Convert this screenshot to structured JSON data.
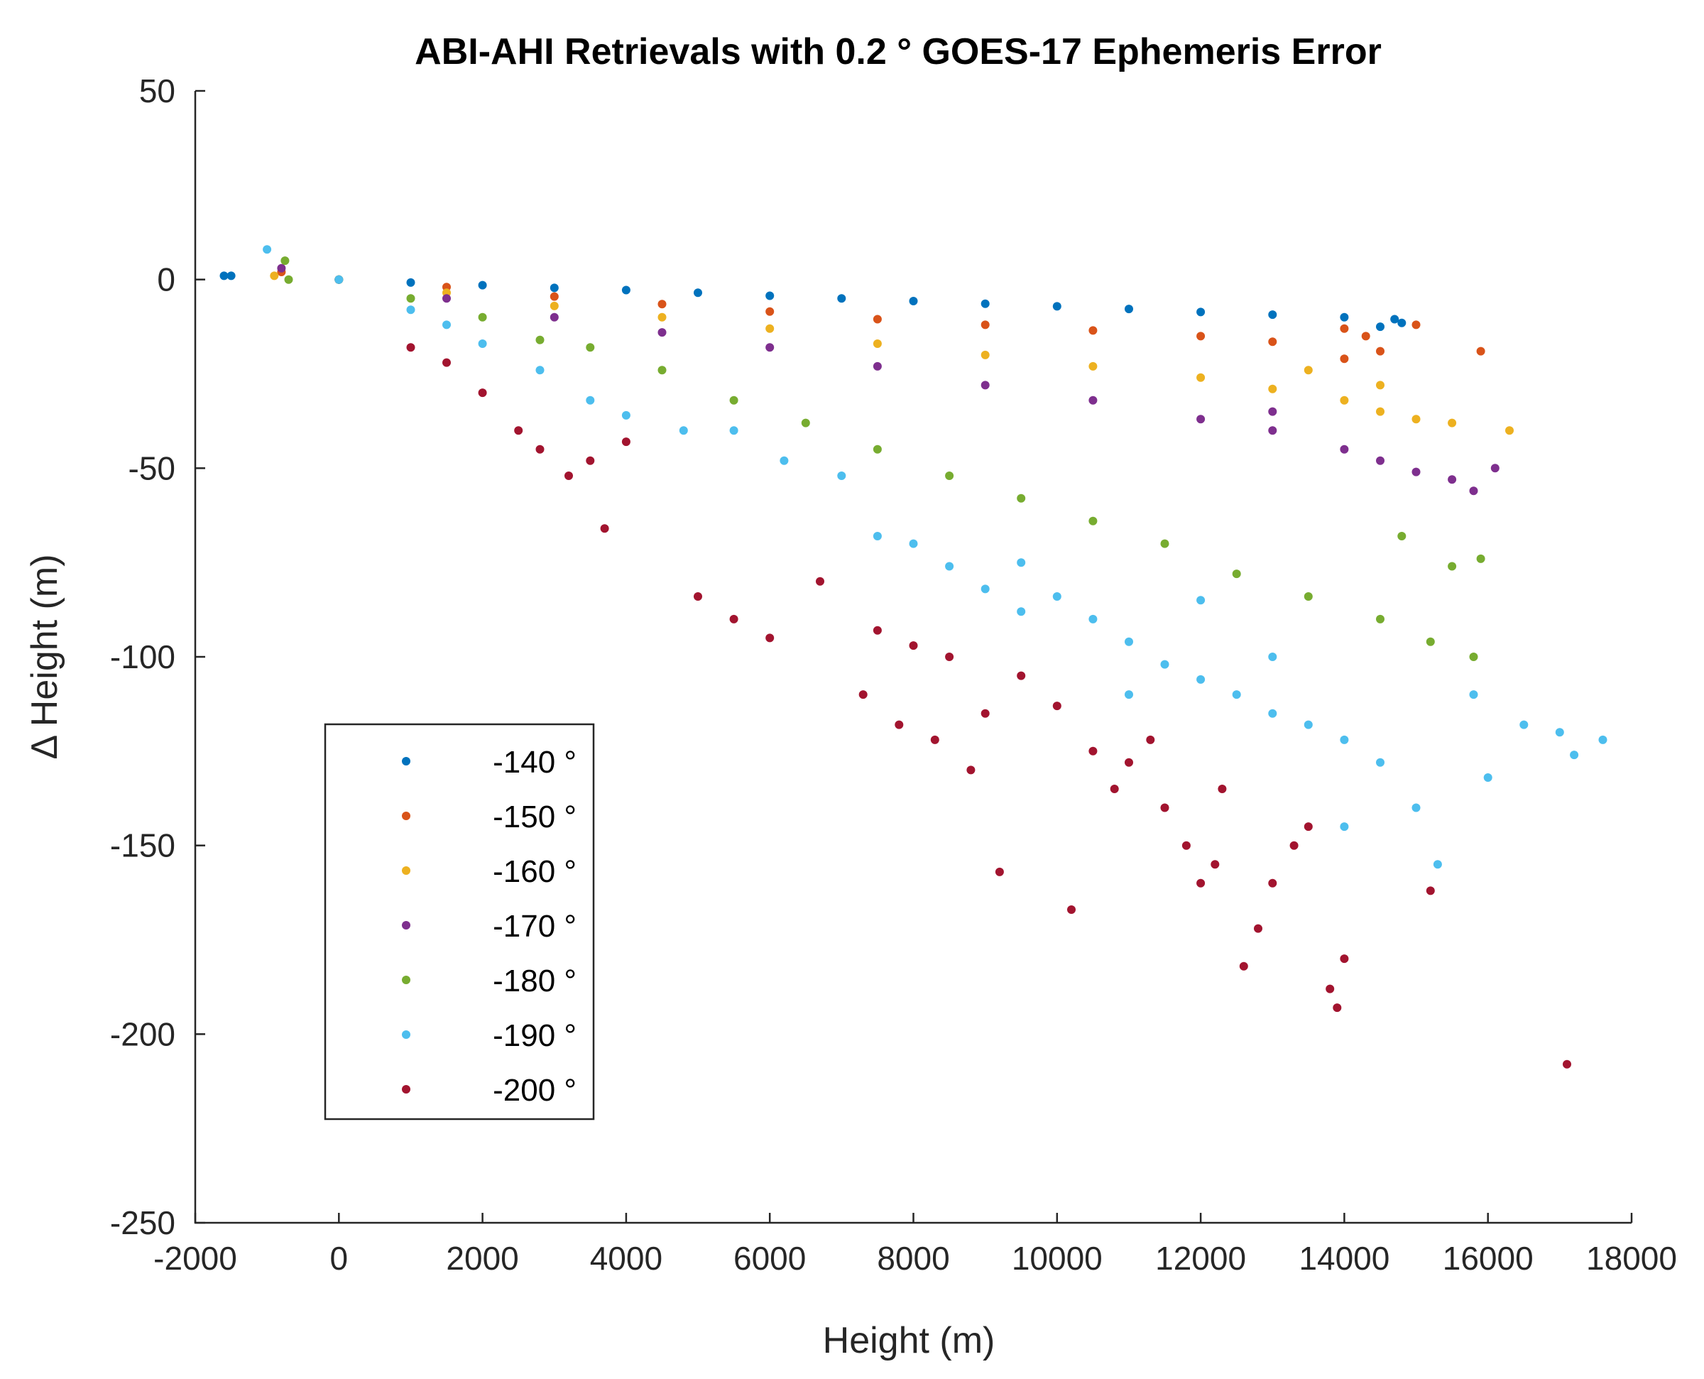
{
  "chart_data": {
    "type": "scatter",
    "title": "ABI-AHI Retrievals with 0.2 ° GOES-17 Ephemeris Error",
    "xlabel": "Height (m)",
    "ylabel": "Δ Height (m)",
    "xlim": [
      -2000,
      18000
    ],
    "ylim": [
      -250,
      50
    ],
    "xticks": [
      -2000,
      0,
      2000,
      4000,
      6000,
      8000,
      10000,
      12000,
      14000,
      16000,
      18000
    ],
    "yticks": [
      50,
      0,
      -50,
      -100,
      -150,
      -200,
      -250
    ],
    "legend_position": "lower-left",
    "series": [
      {
        "name": "-140 °",
        "color": "#0072BD",
        "points": [
          [
            -1600,
            1
          ],
          [
            -1500,
            1
          ],
          [
            0,
            0
          ],
          [
            1000,
            -0.8
          ],
          [
            2000,
            -1.5
          ],
          [
            3000,
            -2.2
          ],
          [
            4000,
            -2.8
          ],
          [
            5000,
            -3.5
          ],
          [
            6000,
            -4.3
          ],
          [
            7000,
            -5.0
          ],
          [
            8000,
            -5.7
          ],
          [
            9000,
            -6.4
          ],
          [
            10000,
            -7.1
          ],
          [
            11000,
            -7.8
          ],
          [
            12000,
            -8.6
          ],
          [
            13000,
            -9.3
          ],
          [
            14000,
            -10.0
          ],
          [
            14700,
            -10.5
          ],
          [
            14800,
            -11.5
          ],
          [
            14500,
            -12.5
          ]
        ]
      },
      {
        "name": "-150 °",
        "color": "#D95319",
        "points": [
          [
            -800,
            2
          ],
          [
            0,
            0
          ],
          [
            1500,
            -2
          ],
          [
            3000,
            -4.5
          ],
          [
            4500,
            -6.5
          ],
          [
            6000,
            -8.5
          ],
          [
            7500,
            -10.5
          ],
          [
            9000,
            -12
          ],
          [
            10500,
            -13.5
          ],
          [
            12000,
            -15
          ],
          [
            13000,
            -16.5
          ],
          [
            14000,
            -13
          ],
          [
            14000,
            -21
          ],
          [
            14500,
            -19
          ],
          [
            15000,
            -12
          ],
          [
            15900,
            -19
          ],
          [
            14300,
            -15
          ]
        ]
      },
      {
        "name": "-160 °",
        "color": "#EDB120",
        "points": [
          [
            -900,
            1
          ],
          [
            0,
            0
          ],
          [
            1500,
            -3.5
          ],
          [
            3000,
            -7
          ],
          [
            4500,
            -10
          ],
          [
            6000,
            -13
          ],
          [
            7500,
            -17
          ],
          [
            9000,
            -20
          ],
          [
            10500,
            -23
          ],
          [
            12000,
            -26
          ],
          [
            13000,
            -29
          ],
          [
            14000,
            -32
          ],
          [
            14500,
            -35
          ],
          [
            15000,
            -37
          ],
          [
            15500,
            -38
          ],
          [
            16300,
            -40
          ],
          [
            13500,
            -24
          ],
          [
            14500,
            -28
          ]
        ]
      },
      {
        "name": "-170 °",
        "color": "#7E2F8E",
        "points": [
          [
            -800,
            3
          ],
          [
            0,
            0
          ],
          [
            1500,
            -5
          ],
          [
            3000,
            -10
          ],
          [
            4500,
            -14
          ],
          [
            6000,
            -18
          ],
          [
            7500,
            -23
          ],
          [
            9000,
            -28
          ],
          [
            10500,
            -32
          ],
          [
            12000,
            -37
          ],
          [
            13000,
            -40
          ],
          [
            14000,
            -45
          ],
          [
            14500,
            -48
          ],
          [
            15000,
            -51
          ],
          [
            15500,
            -53
          ],
          [
            16100,
            -50
          ],
          [
            15800,
            -56
          ],
          [
            13000,
            -35
          ]
        ]
      },
      {
        "name": "-180 °",
        "color": "#77AC30",
        "points": [
          [
            -750,
            5
          ],
          [
            -700,
            0
          ],
          [
            0,
            0
          ],
          [
            1000,
            -5
          ],
          [
            2000,
            -10
          ],
          [
            2800,
            -16
          ],
          [
            3500,
            -18
          ],
          [
            4500,
            -24
          ],
          [
            5500,
            -32
          ],
          [
            6500,
            -38
          ],
          [
            7500,
            -45
          ],
          [
            8500,
            -52
          ],
          [
            9500,
            -58
          ],
          [
            10500,
            -64
          ],
          [
            11500,
            -70
          ],
          [
            12500,
            -78
          ],
          [
            13500,
            -84
          ],
          [
            14500,
            -90
          ],
          [
            15200,
            -96
          ],
          [
            15800,
            -100
          ],
          [
            15900,
            -74
          ],
          [
            15500,
            -76
          ],
          [
            14800,
            -68
          ]
        ]
      },
      {
        "name": "-190 °",
        "color": "#4DBEEE",
        "points": [
          [
            -1000,
            8
          ],
          [
            0,
            0
          ],
          [
            1000,
            -8
          ],
          [
            1500,
            -12
          ],
          [
            2000,
            -17
          ],
          [
            2800,
            -24
          ],
          [
            3500,
            -32
          ],
          [
            4000,
            -36
          ],
          [
            4800,
            -40
          ],
          [
            5500,
            -40
          ],
          [
            6200,
            -48
          ],
          [
            7000,
            -52
          ],
          [
            7500,
            -68
          ],
          [
            8000,
            -70
          ],
          [
            8500,
            -76
          ],
          [
            9000,
            -82
          ],
          [
            9500,
            -88
          ],
          [
            10000,
            -84
          ],
          [
            10500,
            -90
          ],
          [
            11000,
            -96
          ],
          [
            11500,
            -102
          ],
          [
            12000,
            -106
          ],
          [
            12500,
            -110
          ],
          [
            13000,
            -115
          ],
          [
            13500,
            -118
          ],
          [
            14000,
            -122
          ],
          [
            14500,
            -128
          ],
          [
            15000,
            -140
          ],
          [
            15300,
            -155
          ],
          [
            15800,
            -110
          ],
          [
            16500,
            -118
          ],
          [
            17000,
            -120
          ],
          [
            17600,
            -122
          ],
          [
            17200,
            -126
          ],
          [
            16000,
            -132
          ],
          [
            12000,
            -85
          ],
          [
            13000,
            -100
          ],
          [
            11000,
            -110
          ],
          [
            9500,
            -75
          ],
          [
            14000,
            -145
          ]
        ]
      },
      {
        "name": "-200 °",
        "color": "#A2142F",
        "points": [
          [
            1000,
            -18
          ],
          [
            1500,
            -22
          ],
          [
            2000,
            -30
          ],
          [
            2500,
            -40
          ],
          [
            2800,
            -45
          ],
          [
            3200,
            -52
          ],
          [
            3500,
            -48
          ],
          [
            3700,
            -66
          ],
          [
            4000,
            -43
          ],
          [
            5000,
            -84
          ],
          [
            5500,
            -90
          ],
          [
            6000,
            -95
          ],
          [
            6700,
            -80
          ],
          [
            7300,
            -110
          ],
          [
            7500,
            -93
          ],
          [
            7800,
            -118
          ],
          [
            8000,
            -97
          ],
          [
            8300,
            -122
          ],
          [
            8500,
            -100
          ],
          [
            8800,
            -130
          ],
          [
            9000,
            -115
          ],
          [
            9200,
            -157
          ],
          [
            9500,
            -105
          ],
          [
            10000,
            -113
          ],
          [
            10200,
            -167
          ],
          [
            10500,
            -125
          ],
          [
            10800,
            -135
          ],
          [
            11000,
            -128
          ],
          [
            11500,
            -140
          ],
          [
            11800,
            -150
          ],
          [
            12000,
            -160
          ],
          [
            12300,
            -135
          ],
          [
            12600,
            -182
          ],
          [
            12800,
            -172
          ],
          [
            13000,
            -160
          ],
          [
            13300,
            -150
          ],
          [
            13500,
            -145
          ],
          [
            13800,
            -188
          ],
          [
            13900,
            -193
          ],
          [
            14000,
            -180
          ],
          [
            15200,
            -162
          ],
          [
            17100,
            -208
          ],
          [
            11300,
            -122
          ],
          [
            12200,
            -155
          ]
        ]
      }
    ]
  }
}
